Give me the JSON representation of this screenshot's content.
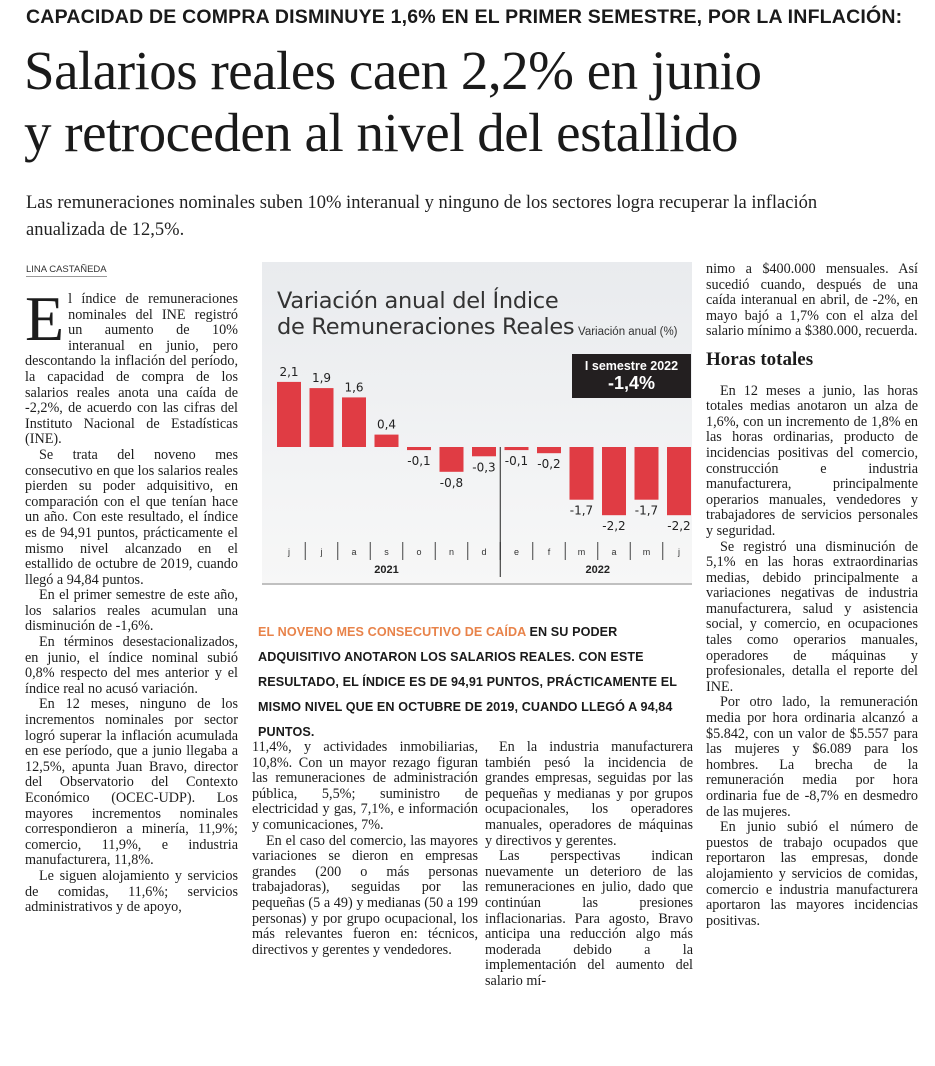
{
  "kicker": "CAPACIDAD DE COMPRA DISMINUYE 1,6% EN EL PRIMER SEMESTRE, POR LA INFLACIÓN:",
  "headline": {
    "line1": "Salarios reales caen 2,2% en junio",
    "line2": "y retroceden al nivel del estallido"
  },
  "deck": "Las remuneraciones nominales suben 10% interanual y ninguno de los sectores logra recuperar la inflación anualizada de 12,5%.",
  "byline": "LINA CASTAÑEDA",
  "column1": {
    "dropcap": "E",
    "paragraphs": [
      "l índice de remuneraciones nominales del INE registró un aumento de 10% interanual en junio, pero descontando la inflación del período, la capacidad de compra de los salarios reales anota una caída de -2,2%, de acuerdo con las cifras del Instituto Nacional de Estadísticas (INE).",
      "Se trata del noveno mes consecutivo en que los salarios reales pierden su poder adquisitivo, en comparación con el que tenían hace un año. Con este resultado, el índice es de 94,91 puntos, prácticamente el mismo nivel alcanzado en el estallido de octubre de 2019, cuando llegó a 94,84 puntos.",
      "En el primer semestre de este año, los salarios reales acumulan una disminución de -1,6%.",
      "En términos desestacionalizados, en junio, el índice nominal subió 0,8% respecto del mes anterior y el índice real no acusó variación.",
      "En 12 meses, ninguno de los incrementos nominales por sector logró superar la inflación acumulada en ese período, que a junio llegaba a 12,5%, apunta Juan Bravo, director del Observatorio del Contexto Económico (OCEC-UDP). Los mayores incrementos nominales correspondieron a minería, 11,9%; comercio, 11,9%, e industria manufacturera, 11,8%.",
      "Le siguen alojamiento y servicios de comidas, 11,6%; servicios administrativos y de apoyo,"
    ]
  },
  "column2": {
    "paragraphs": [
      "11,4%, y actividades inmobiliarias, 10,8%. Con un mayor rezago figuran las remuneraciones de administración pública, 5,5%; suministro de electricidad y gas, 7,1%, e información y comunicaciones, 7%.",
      "En el caso del comercio, las mayores variaciones se dieron en empresas grandes (200 o más personas trabajadoras), seguidas por las pequeñas (5 a 49) y medianas (50 a 199 personas) y por grupo ocupacional, los más relevantes fueron en: técnicos, directivos y gerentes y vendedores."
    ]
  },
  "column3": {
    "paragraphs": [
      "En la industria manufacturera también pesó la incidencia de grandes empresas, seguidas por las pequeñas y medianas y por grupos ocupacionales, los operadores manuales, operadores de máquinas y directivos y gerentes.",
      "Las perspectivas indican nuevamente un deterioro de las remuneraciones en julio, dado que continúan las presiones inflacionarias. Para agosto, Bravo anticipa una reducción algo más moderada debido a la implementación del aumento del salario mí-"
    ]
  },
  "column4": {
    "intro": "nimo a $400.000 mensuales. Así sucedió cuando, después de una caída interanual en abril, de -2%, en mayo bajó a 1,7% con el alza del salario mínimo a $380.000, recuerda.",
    "subhead": "Horas totales",
    "paragraphs": [
      "En 12 meses a junio, las horas totales medias anotaron un alza de 1,6%, con un incremento de 1,8% en las horas ordinarias, producto de incidencias positivas del comercio, construcción e industria manufacturera, principalmente operarios manuales, vendedores y trabajadores de servicios personales y seguridad.",
      "Se registró una disminución de 5,1% en las horas extraordinarias medias, debido principalmente a variaciones negativas de industria manufacturera, salud y asistencia social, y comercio, en ocupaciones tales como operarios manuales, operadores de máquinas y profesionales, detalla el reporte del INE.",
      "Por otro lado, la remuneración media por hora ordinaria alcanzó a $5.842, con un valor de $5.557 para las mujeres y $6.089 para los hombres. La brecha de la remuneración media por hora ordinaria fue de -8,7% en desmedro de las mujeres.",
      "En junio subió el número de puestos de trabajo ocupados que reportaron las empresas, donde alojamiento y servicios de comidas, comercio e industria manufacturera aportaron las mayores incidencias positivas."
    ]
  },
  "pullquote": {
    "highlight": "EL NOVENO MES CONSECUTIVO DE CAÍDA",
    "rest": " EN SU PODER ADQUISITIVO ANOTARON LOS SALARIOS REALES. CON ESTE RESULTADO, EL ÍNDICE ES DE 94,91 PUNTOS, PRÁCTICAMENTE EL MISMO NIVEL QUE EN OCTUBRE DE 2019, CUANDO LLEGÓ A 94,84 PUNTOS.",
    "highlight_color": "#e8834a"
  },
  "chart_data": {
    "type": "bar",
    "title": "Variación anual del Índice de Remuneraciones Reales",
    "title_line1": "Variación anual del Índice",
    "title_line2": "de Remuneraciones Reales",
    "ylabel": "Variación anual (%)",
    "categories": [
      "j",
      "j",
      "a",
      "s",
      "o",
      "n",
      "d",
      "e",
      "f",
      "m",
      "a",
      "m",
      "j"
    ],
    "years": [
      {
        "label": "2021",
        "months": 7
      },
      {
        "label": "2022",
        "months": 6
      }
    ],
    "values": [
      2.1,
      1.9,
      1.6,
      0.4,
      -0.1,
      -0.8,
      -0.3,
      -0.1,
      -0.2,
      -1.7,
      -2.2,
      -1.7,
      -2.2
    ],
    "value_labels": [
      "2,1",
      "1,9",
      "1,6",
      "0,4",
      "-0,1",
      "-0,8",
      "-0,3",
      "-0,1",
      "-0,2",
      "-1,7",
      "-2,2",
      "-1,7",
      "-2,2"
    ],
    "bar_color": "#e03c44",
    "annotation": {
      "line1": "I semestre 2022",
      "line2": "-1,4%"
    },
    "ylim": [
      -2.2,
      2.1
    ],
    "grid": false,
    "legend": "none"
  }
}
